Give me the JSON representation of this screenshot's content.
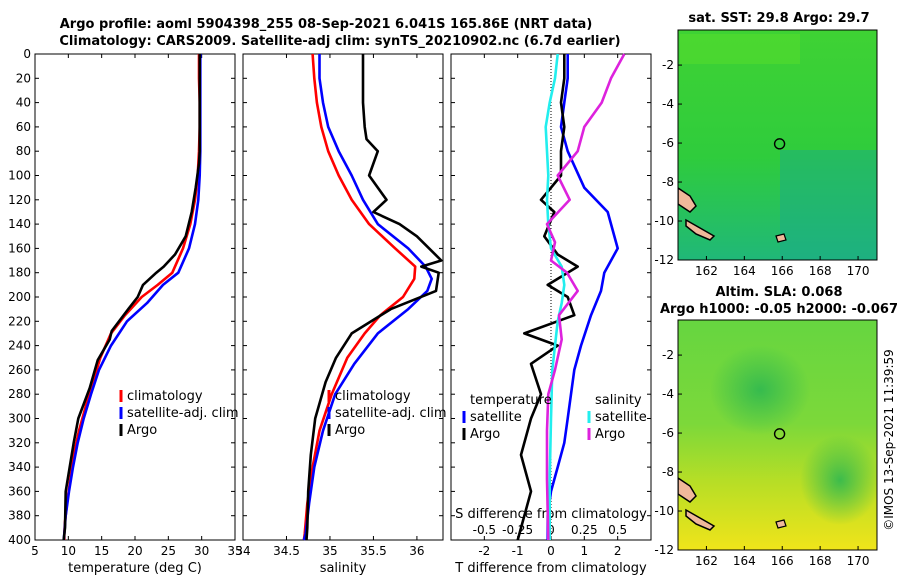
{
  "header": {
    "title_line1": "Argo profile: aoml 5904398_255 08-Sep-2021 6.041S 165.86E (NRT data)",
    "title_line2": "Climatology: CARS2009. Satellite-adj clim: synTS_20210902.nc (6.7d earlier)"
  },
  "colors": {
    "climatology": "#ff0000",
    "satellite": "#0000ff",
    "argo": "#000000",
    "sat_diff": "#22eeee",
    "argo_sdiff": "#dd22dd"
  },
  "legend": {
    "climatology": "climatology",
    "satellite": "satellite-adj. clim",
    "argo": "Argo",
    "diff_temperature": "temperature",
    "diff_salinity": "salinity",
    "diff_satellite": "satellite",
    "diff_argo": "Argo"
  },
  "chart_data": [
    {
      "type": "line",
      "id": "temperature",
      "xlabel": "temperature (deg C)",
      "ylabel": "",
      "xlim": [
        5,
        35
      ],
      "ylim": [
        0,
        400
      ],
      "xticks": [
        5,
        10,
        15,
        20,
        25,
        30,
        35
      ],
      "yticks": [
        0,
        20,
        40,
        60,
        80,
        100,
        120,
        140,
        160,
        180,
        200,
        220,
        240,
        260,
        280,
        300,
        320,
        340,
        360,
        380,
        400
      ],
      "series": [
        {
          "name": "climatology",
          "x": [
            29.6,
            29.6,
            29.7,
            29.7,
            29.6,
            29.4,
            29.0,
            28.3,
            27.2,
            25.6,
            23.4,
            21.0,
            18.5,
            16.4,
            14.8,
            13.7,
            12.6,
            11.6,
            10.8,
            10.3,
            9.8,
            9.5,
            9.4,
            9.4
          ],
          "y": [
            0,
            20,
            40,
            60,
            80,
            100,
            120,
            140,
            160,
            180,
            190,
            200,
            215,
            230,
            250,
            270,
            290,
            310,
            330,
            350,
            370,
            385,
            395,
            400
          ]
        },
        {
          "name": "satellite",
          "x": [
            29.8,
            29.8,
            29.8,
            29.8,
            29.8,
            29.7,
            29.5,
            29.0,
            28.1,
            26.5,
            24.2,
            21.8,
            18.8,
            16.4,
            14.6,
            13.4,
            12.3,
            11.4,
            10.7,
            10.1,
            9.6,
            9.4,
            9.3
          ],
          "y": [
            0,
            20,
            40,
            60,
            80,
            100,
            120,
            140,
            160,
            180,
            190,
            205,
            220,
            240,
            260,
            280,
            300,
            320,
            340,
            360,
            380,
            395,
            400
          ]
        },
        {
          "name": "Argo",
          "x": [
            29.7,
            29.7,
            29.7,
            29.7,
            29.7,
            29.6,
            29.1,
            28.5,
            27.6,
            26.0,
            24.3,
            23.2,
            21.2,
            20.4,
            19.0,
            16.5,
            16.2,
            14.4,
            13.2,
            11.5,
            10.8,
            10.2,
            9.6,
            9.5,
            9.3
          ],
          "y": [
            0,
            20,
            40,
            60,
            80,
            90,
            110,
            130,
            150,
            165,
            175,
            180,
            190,
            200,
            210,
            228,
            235,
            252,
            275,
            300,
            320,
            340,
            360,
            390,
            400
          ]
        }
      ]
    },
    {
      "type": "line",
      "id": "salinity",
      "xlabel": "salinity",
      "ylabel": "",
      "xlim": [
        34,
        36.3
      ],
      "ylim": [
        0,
        400
      ],
      "xticks": [
        34,
        34.5,
        35,
        35.5,
        36
      ],
      "series": [
        {
          "name": "climatology",
          "x": [
            34.8,
            34.82,
            34.85,
            34.9,
            34.98,
            35.1,
            35.25,
            35.45,
            35.75,
            35.98,
            35.97,
            35.84,
            35.58,
            35.4,
            35.2,
            35.02,
            34.88,
            34.8,
            34.74,
            34.71,
            34.7
          ],
          "y": [
            0,
            20,
            40,
            60,
            80,
            100,
            120,
            140,
            160,
            175,
            185,
            200,
            215,
            230,
            250,
            280,
            310,
            340,
            370,
            395,
            400
          ]
        },
        {
          "name": "satellite",
          "x": [
            34.88,
            34.88,
            34.92,
            34.98,
            35.1,
            35.25,
            35.38,
            35.55,
            35.9,
            36.1,
            36.17,
            36.12,
            35.9,
            35.55,
            35.28,
            35.06,
            34.92,
            34.82,
            34.76,
            34.72,
            34.7
          ],
          "y": [
            0,
            20,
            40,
            60,
            80,
            100,
            120,
            140,
            160,
            175,
            185,
            195,
            210,
            230,
            255,
            280,
            310,
            340,
            370,
            395,
            400
          ]
        },
        {
          "name": "Argo",
          "x": [
            35.38,
            35.38,
            35.38,
            35.4,
            35.42,
            35.55,
            35.45,
            35.65,
            35.5,
            35.8,
            36.0,
            36.28,
            36.05,
            36.25,
            36.22,
            35.7,
            35.25,
            35.07,
            34.95,
            34.83,
            34.78,
            34.75,
            34.74,
            34.73
          ],
          "y": [
            0,
            20,
            40,
            60,
            70,
            80,
            100,
            120,
            130,
            140,
            150,
            170,
            175,
            180,
            195,
            210,
            230,
            250,
            270,
            300,
            330,
            360,
            390,
            400
          ]
        }
      ]
    },
    {
      "type": "line",
      "id": "differences",
      "xlabel": "T difference from climatology",
      "x2label": "S difference from climatology",
      "xlim": [
        -3,
        3
      ],
      "ylim": [
        0,
        400
      ],
      "xticks": [
        -2,
        -1,
        0,
        1,
        2
      ],
      "x2ticks": [
        -0.5,
        -0.25,
        0,
        0.25,
        0.5
      ],
      "x2lim": [
        -0.75,
        0.75
      ],
      "series": [
        {
          "name": "T satellite",
          "x": [
            0.5,
            0.5,
            0.4,
            0.3,
            0.5,
            1.0,
            1.7,
            2.0,
            1.6,
            1.5,
            1.2,
            0.9,
            0.7,
            0.6,
            0.5,
            0.4,
            0.2,
            0.0,
            -0.1,
            -0.1
          ],
          "y": [
            0,
            20,
            40,
            60,
            80,
            110,
            130,
            160,
            180,
            195,
            215,
            240,
            260,
            280,
            300,
            320,
            340,
            360,
            380,
            400
          ]
        },
        {
          "name": "T Argo",
          "x": [
            0.4,
            0.4,
            0.3,
            0.4,
            0.3,
            0.3,
            -0.3,
            0.1,
            -0.2,
            0.2,
            0.8,
            -0.1,
            0.5,
            0.7,
            -0.8,
            0.2,
            -0.6,
            -0.3,
            -0.6,
            -0.9,
            -0.6,
            -1.0
          ],
          "y": [
            0,
            20,
            40,
            60,
            80,
            100,
            120,
            130,
            150,
            165,
            175,
            190,
            200,
            215,
            230,
            240,
            255,
            280,
            300,
            330,
            360,
            400
          ]
        },
        {
          "name": "S satellite",
          "x": [
            0.05,
            0.03,
            -0.01,
            -0.04,
            -0.03,
            -0.02,
            -0.03,
            -0.02,
            0.0,
            0.08,
            0.1,
            0.08,
            0.05,
            0.03,
            0.01,
            0.0,
            -0.01,
            -0.01
          ],
          "y": [
            0,
            20,
            40,
            60,
            80,
            100,
            120,
            140,
            160,
            175,
            190,
            205,
            220,
            240,
            260,
            300,
            350,
            400
          ]
        },
        {
          "name": "S Argo",
          "x": [
            0.55,
            0.45,
            0.38,
            0.25,
            0.2,
            0.05,
            0.14,
            -0.03,
            0.03,
            0.0,
            0.12,
            0.2,
            0.06,
            0.08,
            0.03,
            -0.02,
            -0.03,
            -0.03,
            -0.02
          ],
          "y": [
            0,
            20,
            40,
            60,
            80,
            100,
            120,
            140,
            155,
            170,
            180,
            195,
            215,
            235,
            260,
            280,
            310,
            350,
            400
          ]
        }
      ]
    },
    {
      "type": "heatmap",
      "id": "sst_map",
      "title": "sat. SST: 29.8 Argo: 29.7",
      "xlim": [
        160.5,
        171
      ],
      "ylim": [
        -12,
        -0.2
      ],
      "xticks": [
        162,
        164,
        166,
        168,
        170
      ],
      "yticks": [
        -2,
        -4,
        -6,
        -8,
        -10,
        -12
      ],
      "marker": {
        "lon": 165.86,
        "lat": -6.041
      }
    },
    {
      "type": "heatmap",
      "id": "sla_map",
      "title_line1": "Altim. SLA: 0.068",
      "title_line2": "Argo h1000: -0.05 h2000: -0.067",
      "xlim": [
        160.5,
        171
      ],
      "ylim": [
        -12,
        -0.2
      ],
      "xticks": [
        162,
        164,
        166,
        168,
        170
      ],
      "yticks": [
        -2,
        -4,
        -6,
        -8,
        -10,
        -12
      ],
      "marker": {
        "lon": 165.86,
        "lat": -6.041
      }
    }
  ],
  "footer": {
    "timestamp": "©IMOS 13-Sep-2021 11:39:59"
  }
}
